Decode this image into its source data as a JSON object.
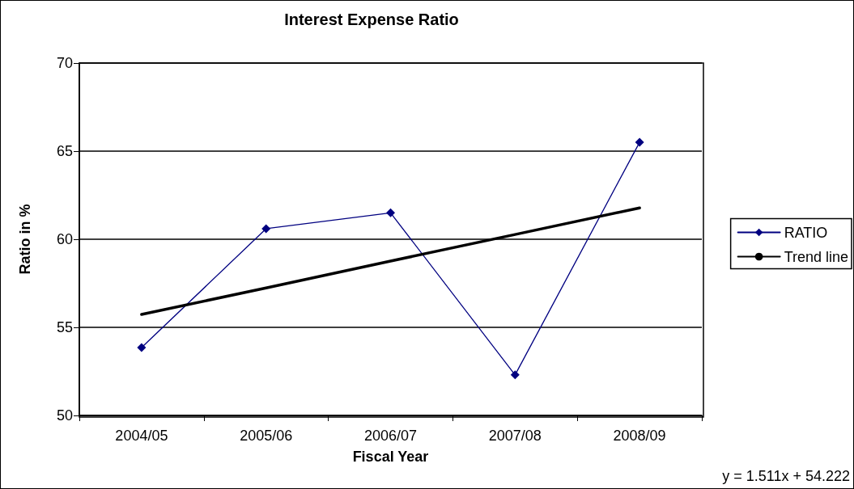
{
  "chart_data": {
    "type": "line",
    "title": "Interest Expense Ratio",
    "xlabel": "Fiscal Year",
    "ylabel": "Ratio in %",
    "categories": [
      "2004/05",
      "2005/06",
      "2006/07",
      "2007/08",
      "2008/09"
    ],
    "series": [
      {
        "name": "RATIO",
        "color": "#000080",
        "values": [
          53.85,
          60.6,
          61.5,
          52.3,
          65.5
        ],
        "marker": "diamond"
      },
      {
        "name": "Trend line",
        "type": "line",
        "color": "#000000",
        "x": [
          "2004/05",
          "2005/06",
          "2006/07",
          "2007/08",
          "2008/09"
        ],
        "values": [
          55.73,
          57.24,
          58.76,
          60.27,
          61.78
        ],
        "marker": "none"
      }
    ],
    "ylim": [
      50,
      70
    ],
    "yticks": [
      50,
      55,
      60,
      65,
      70
    ],
    "grid": "y",
    "legend": "right",
    "annotations": [
      "y = 1.511x + 54.222"
    ]
  }
}
